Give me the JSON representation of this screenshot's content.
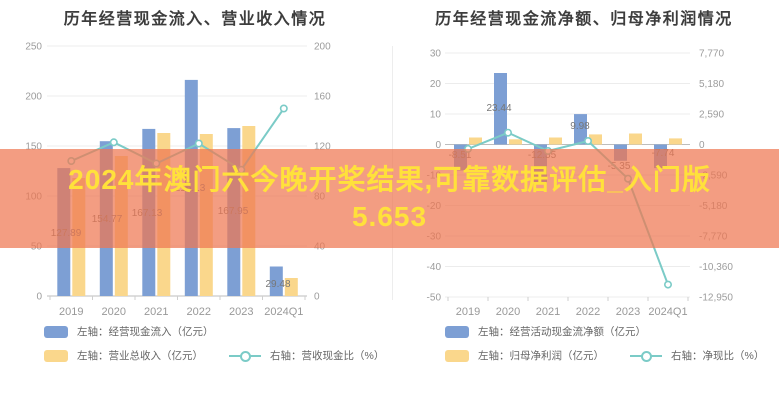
{
  "banner": {
    "line1": "2024年澳门六今晚开奖结果,可靠数据评估_入门版",
    "line2": "5.653",
    "bg_color": "rgba(238,119,82,0.72)",
    "text_color": "#FFE13B"
  },
  "colors": {
    "bar_blue": "#7D9FD4",
    "bar_yellow": "#FAD78C",
    "line_teal": "#7BCBC7",
    "grid": "#ECECEC",
    "axis_dark": "#C2C2C2",
    "zero_line": "#BDBDBD",
    "tick_mark": "#CFCFCF"
  },
  "chart_data": [
    {
      "type": "bar+line",
      "title": "历年经营现金流入、营业收入情况",
      "categories": [
        "2019",
        "2020",
        "2021",
        "2022",
        "2023",
        "2024Q1"
      ],
      "grid": true,
      "legend_position": "bottom",
      "left_axis": {
        "max": 250,
        "min": 0,
        "ticks": [
          {
            "v": 250,
            "t": "250"
          },
          {
            "v": 200,
            "t": "200"
          },
          {
            "v": 150,
            "t": "150"
          },
          {
            "v": 100,
            "t": "100"
          },
          {
            "v": 50,
            "t": "50"
          },
          {
            "v": 0,
            "t": "0"
          }
        ]
      },
      "right_axis": {
        "max": 200,
        "min": 0,
        "ticks": [
          {
            "v": 200,
            "t": "200"
          },
          {
            "v": 160,
            "t": "160"
          },
          {
            "v": 120,
            "t": "120"
          },
          {
            "v": 80,
            "t": "80"
          },
          {
            "v": 40,
            "t": "40"
          },
          {
            "v": 0,
            "t": "0"
          }
        ]
      },
      "series": [
        {
          "name": "左轴：经营现金流入（亿元）",
          "type": "bar",
          "axis": "left",
          "color": "#7D9FD4",
          "values": [
            127.89,
            154.77,
            167.13,
            216.13,
            167.95,
            29.48
          ],
          "labels": [
            "127.89",
            "154.77",
            "167.13",
            "216.13",
            "167.95",
            "29.48"
          ]
        },
        {
          "name": "左轴：营业总收入（亿元）",
          "type": "bar",
          "axis": "left",
          "color": "#FAD78C",
          "values": [
            118,
            140,
            163,
            162,
            170,
            18
          ]
        },
        {
          "name": "右轴：营收现金比（%）",
          "type": "line",
          "axis": "right",
          "color": "#7BCBC7",
          "values": [
            108,
            123,
            106,
            122,
            101,
            150
          ]
        }
      ]
    },
    {
      "type": "bar+line",
      "title": "历年经营现金流净额、归母净利润情况",
      "categories": [
        "2019",
        "2020",
        "2021",
        "2022",
        "2023",
        "2024Q1"
      ],
      "grid": true,
      "legend_position": "bottom",
      "left_axis": {
        "max": 30,
        "min": -50,
        "ticks": [
          {
            "v": 30,
            "t": "30"
          },
          {
            "v": 20,
            "t": "20"
          },
          {
            "v": 10,
            "t": "10"
          },
          {
            "v": 0,
            "t": "0"
          },
          {
            "v": -10,
            "t": "-10"
          },
          {
            "v": -20,
            "t": "-20"
          },
          {
            "v": -30,
            "t": "-30"
          },
          {
            "v": -40,
            "t": "-40"
          },
          {
            "v": -50,
            "t": "-50"
          }
        ]
      },
      "right_axis": {
        "max": 7770,
        "min": -12950,
        "ticks": [
          {
            "v": 7770,
            "t": "7,770"
          },
          {
            "v": 5180,
            "t": "5,180"
          },
          {
            "v": 2590,
            "t": "2,590"
          },
          {
            "v": 0,
            "t": "0"
          },
          {
            "v": -2590,
            "t": "-2,590"
          },
          {
            "v": -5180,
            "t": "-5,180"
          },
          {
            "v": -7770,
            "t": "-7,770"
          },
          {
            "v": -10360,
            "t": "-10,360"
          },
          {
            "v": -12950,
            "t": "-12,950"
          }
        ]
      },
      "series": [
        {
          "name": "左轴：经营活动现金流净额（亿元）",
          "type": "bar",
          "axis": "left",
          "color": "#7D9FD4",
          "values": [
            -8.51,
            23.44,
            -12.55,
            9.98,
            -5.35,
            -7.74
          ],
          "labels": [
            "-8.51",
            "23.44",
            "-12.55",
            "9.98",
            "-5.35",
            "-7.74"
          ]
        },
        {
          "name": "左轴：归母净利润（亿元）",
          "type": "bar",
          "axis": "left",
          "color": "#FAD78C",
          "values": [
            2.3,
            1.7,
            2.3,
            3.3,
            3.6,
            2
          ]
        },
        {
          "name": "右轴：净现比（%）",
          "type": "line",
          "axis": "right",
          "color": "#7BCBC7",
          "values": [
            -370,
            1000,
            -550,
            300,
            -2900,
            -11900
          ]
        }
      ]
    }
  ]
}
